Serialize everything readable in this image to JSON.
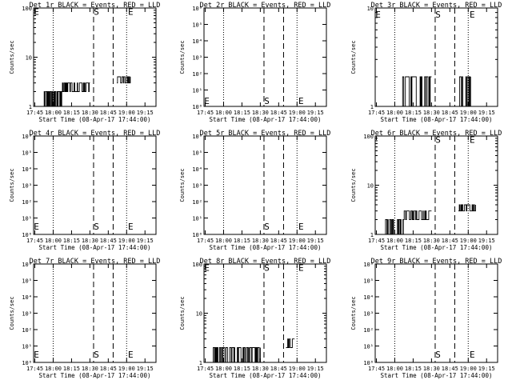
{
  "chart_data": [
    {
      "id": "1r",
      "title": "Det 1r BLACK = Events, RED = LLD",
      "type": "line",
      "ylabel": "Counts/sec",
      "xlabel": "Start Time (08-Apr-17 17:44:00)",
      "x_ticks": [
        "17:45",
        "18:00",
        "18:15",
        "18:30",
        "18:45",
        "19:00",
        "19:15"
      ],
      "xlim": [
        "17:44",
        "19:24"
      ],
      "yscale": "log",
      "ylim": [
        1,
        100
      ],
      "y_ticks": [
        {
          "label": "1",
          "v": 1
        },
        {
          "label": "10",
          "v": 10
        },
        {
          "label": "100",
          "v": 100
        }
      ],
      "dotted_lines": [
        "18:00",
        "19:00"
      ],
      "dashed_lines": [
        "18:33",
        "18:49"
      ],
      "markers": [
        {
          "text": "S",
          "at": "18:34",
          "v": 85
        },
        {
          "text": "E",
          "at": "19:02",
          "v": 85
        },
        {
          "text": "E",
          "at": "17:45",
          "v": 85
        }
      ],
      "series": [
        {
          "color": "#000000",
          "segments": [
            {
              "x": [
                "17:51",
                "18:07"
              ],
              "levels": [
                1,
                2
              ]
            },
            {
              "x": [
                "18:07",
                "18:30"
              ],
              "levels": [
                2,
                3
              ]
            },
            {
              "x": [
                "18:52",
                "19:03"
              ],
              "levels": [
                3,
                4
              ]
            }
          ]
        }
      ]
    },
    {
      "id": "2r",
      "title": "Det 2r BLACK = Events, RED = LLD",
      "type": "line",
      "ylabel": "Counts/sec",
      "xlabel": "Start Time (08-Apr-17 17:44:00)",
      "x_ticks": [
        "17:45",
        "18:00",
        "18:15",
        "18:30",
        "18:45",
        "19:00",
        "19:15"
      ],
      "xlim": [
        "17:44",
        "19:24"
      ],
      "yscale": "log",
      "ylim": [
        1,
        1000000
      ],
      "y_ticks": [
        {
          "label": "10⁰",
          "v": 1
        },
        {
          "label": "10¹",
          "v": 10
        },
        {
          "label": "10²",
          "v": 100
        },
        {
          "label": "10³",
          "v": 1000
        },
        {
          "label": "10⁴",
          "v": 10000
        },
        {
          "label": "10⁵",
          "v": 100000
        },
        {
          "label": "10⁶",
          "v": 1000000
        }
      ],
      "dotted_lines": [
        "18:00",
        "19:00"
      ],
      "dashed_lines": [
        "18:33",
        "18:49"
      ],
      "markers": [
        {
          "text": "S",
          "at": "18:34",
          "v": 2.2
        },
        {
          "text": "E",
          "at": "19:02",
          "v": 2.2
        },
        {
          "text": "E",
          "at": "17:45",
          "v": 2.2
        }
      ],
      "series": []
    },
    {
      "id": "3r",
      "title": "Det 3r BLACK = Events, RED = LLD",
      "type": "line",
      "ylabel": "Counts/sec",
      "xlabel": "Start Time (08-Apr-17 17:44:00)",
      "x_ticks": [
        "17:45",
        "18:00",
        "18:15",
        "18:30",
        "18:45",
        "19:00",
        "19:15"
      ],
      "xlim": [
        "17:44",
        "19:24"
      ],
      "yscale": "log",
      "ylim": [
        1,
        10
      ],
      "y_ticks": [
        {
          "label": "1",
          "v": 1
        },
        {
          "label": "10",
          "v": 10
        }
      ],
      "dotted_lines": [
        "18:00",
        "19:00"
      ],
      "dashed_lines": [
        "18:33",
        "18:49"
      ],
      "markers": [
        {
          "text": "S",
          "at": "18:34",
          "v": 8.6
        },
        {
          "text": "E",
          "at": "19:02",
          "v": 8.6
        },
        {
          "text": "E",
          "at": "17:45",
          "v": 8.6
        }
      ],
      "series": [
        {
          "color": "#000000",
          "segments": [
            {
              "x": [
                "18:06",
                "18:30"
              ],
              "levels": [
                1,
                2
              ]
            },
            {
              "x": [
                "18:52",
                "19:02"
              ],
              "levels": [
                1,
                2
              ]
            }
          ]
        }
      ]
    },
    {
      "id": "4r",
      "title": "Det 4r BLACK = Events, RED = LLD",
      "type": "line",
      "ylabel": "Counts/sec",
      "xlabel": "Start Time (08-Apr-17 17:44:00)",
      "x_ticks": [
        "17:45",
        "18:00",
        "18:15",
        "18:30",
        "18:45",
        "19:00",
        "19:15"
      ],
      "xlim": [
        "17:44",
        "19:24"
      ],
      "yscale": "log",
      "ylim": [
        1,
        1000000
      ],
      "y_ticks": [
        {
          "label": "10⁰",
          "v": 1
        },
        {
          "label": "10¹",
          "v": 10
        },
        {
          "label": "10²",
          "v": 100
        },
        {
          "label": "10³",
          "v": 1000
        },
        {
          "label": "10⁴",
          "v": 10000
        },
        {
          "label": "10⁵",
          "v": 100000
        },
        {
          "label": "10⁶",
          "v": 1000000
        }
      ],
      "dotted_lines": [
        "18:00",
        "19:00"
      ],
      "dashed_lines": [
        "18:33",
        "18:49"
      ],
      "markers": [
        {
          "text": "S",
          "at": "18:34",
          "v": 3
        },
        {
          "text": "E",
          "at": "19:02",
          "v": 3
        },
        {
          "text": "E",
          "at": "17:45",
          "v": 3
        }
      ],
      "series": []
    },
    {
      "id": "5r",
      "title": "Det 5r BLACK = Events, RED = LLD",
      "type": "line",
      "ylabel": "Counts/sec",
      "xlabel": "Start Time (08-Apr-17 17:44:00)",
      "x_ticks": [
        "17:45",
        "18:00",
        "18:15",
        "18:30",
        "18:45",
        "19:00",
        "19:15"
      ],
      "xlim": [
        "17:44",
        "19:24"
      ],
      "yscale": "log",
      "ylim": [
        1,
        1000000
      ],
      "y_ticks": [
        {
          "label": "10⁰",
          "v": 1
        },
        {
          "label": "10¹",
          "v": 10
        },
        {
          "label": "10²",
          "v": 100
        },
        {
          "label": "10³",
          "v": 1000
        },
        {
          "label": "10⁴",
          "v": 10000
        },
        {
          "label": "10⁵",
          "v": 100000
        },
        {
          "label": "10⁶",
          "v": 1000000
        }
      ],
      "dotted_lines": [
        "18:00",
        "19:00"
      ],
      "dashed_lines": [
        "18:33",
        "18:49"
      ],
      "markers": [
        {
          "text": "S",
          "at": "18:34",
          "v": 3
        },
        {
          "text": "E",
          "at": "19:02",
          "v": 3
        }
      ],
      "series": []
    },
    {
      "id": "6r",
      "title": "Det 6r BLACK = Events, RED = LLD",
      "type": "line",
      "ylabel": "Counts/sec",
      "xlabel": "Start Time (08-Apr-17 17:44:00)",
      "x_ticks": [
        "17:45",
        "18:00",
        "18:15",
        "18:30",
        "18:45",
        "19:00",
        "19:15"
      ],
      "xlim": [
        "17:44",
        "19:24"
      ],
      "yscale": "log",
      "ylim": [
        1,
        100
      ],
      "y_ticks": [
        {
          "label": "1",
          "v": 1
        },
        {
          "label": "10",
          "v": 10
        },
        {
          "label": "100",
          "v": 100
        }
      ],
      "dotted_lines": [
        "18:00",
        "19:00"
      ],
      "dashed_lines": [
        "18:33",
        "18:49"
      ],
      "markers": [
        {
          "text": "S",
          "at": "18:34",
          "v": 85
        },
        {
          "text": "E",
          "at": "19:02",
          "v": 85
        }
      ],
      "series": [
        {
          "color": "#000000",
          "segments": [
            {
              "x": [
                "17:51",
                "18:07"
              ],
              "levels": [
                1,
                2
              ]
            },
            {
              "x": [
                "18:07",
                "18:30"
              ],
              "levels": [
                2,
                3
              ]
            },
            {
              "x": [
                "18:52",
                "19:06"
              ],
              "levels": [
                3,
                4
              ]
            }
          ]
        }
      ]
    },
    {
      "id": "7r",
      "title": "Det 7r BLACK = Events, RED = LLD",
      "type": "line",
      "ylabel": "Counts/sec",
      "xlabel": "Start Time (08-Apr-17 17:44:00)",
      "x_ticks": [
        "17:45",
        "18:00",
        "18:15",
        "18:30",
        "18:45",
        "19:00",
        "19:15"
      ],
      "xlim": [
        "17:44",
        "19:24"
      ],
      "yscale": "log",
      "ylim": [
        1,
        1000000
      ],
      "y_ticks": [
        {
          "label": "10⁰",
          "v": 1
        },
        {
          "label": "10¹",
          "v": 10
        },
        {
          "label": "10²",
          "v": 100
        },
        {
          "label": "10³",
          "v": 1000
        },
        {
          "label": "10⁴",
          "v": 10000
        },
        {
          "label": "10⁵",
          "v": 100000
        },
        {
          "label": "10⁶",
          "v": 1000000
        }
      ],
      "dotted_lines": [
        "18:00",
        "19:00"
      ],
      "dashed_lines": [
        "18:33",
        "18:49"
      ],
      "markers": [
        {
          "text": "S",
          "at": "18:34",
          "v": 3
        },
        {
          "text": "E",
          "at": "19:02",
          "v": 3
        },
        {
          "text": "E",
          "at": "17:45",
          "v": 3
        }
      ],
      "series": []
    },
    {
      "id": "8r",
      "title": "Det 8r BLACK = Events, RED = LLD",
      "type": "line",
      "ylabel": "Counts/sec",
      "xlabel": "Start Time (08-Apr-17 17:44:00)",
      "x_ticks": [
        "17:45",
        "18:00",
        "18:15",
        "18:30",
        "18:45",
        "19:00",
        "19:15"
      ],
      "xlim": [
        "17:44",
        "19:24"
      ],
      "yscale": "log",
      "ylim": [
        1,
        100
      ],
      "y_ticks": [
        {
          "label": "1",
          "v": 1
        },
        {
          "label": "10",
          "v": 10
        },
        {
          "label": "100",
          "v": 100
        }
      ],
      "dotted_lines": [
        "18:00",
        "19:00"
      ],
      "dashed_lines": [
        "18:33",
        "18:49"
      ],
      "markers": [
        {
          "text": "S",
          "at": "18:34",
          "v": 85
        },
        {
          "text": "E",
          "at": "19:02",
          "v": 85
        },
        {
          "text": "E",
          "at": "17:45",
          "v": 85
        }
      ],
      "series": [
        {
          "color": "#000000",
          "segments": [
            {
              "x": [
                "17:51",
                "18:30"
              ],
              "levels": [
                1,
                2
              ]
            },
            {
              "x": [
                "18:51",
                "18:58"
              ],
              "levels": [
                2,
                3
              ]
            }
          ]
        }
      ]
    },
    {
      "id": "9r",
      "title": "Det 9r BLACK = Events, RED = LLD",
      "type": "line",
      "ylabel": "Counts/sec",
      "xlabel": "Start Time (08-Apr-17 17:44:00)",
      "x_ticks": [
        "17:45",
        "18:00",
        "18:15",
        "18:30",
        "18:45",
        "19:00",
        "19:15"
      ],
      "xlim": [
        "17:44",
        "19:24"
      ],
      "yscale": "log",
      "ylim": [
        1,
        1000000
      ],
      "y_ticks": [
        {
          "label": "10⁰",
          "v": 1
        },
        {
          "label": "10¹",
          "v": 10
        },
        {
          "label": "10²",
          "v": 100
        },
        {
          "label": "10³",
          "v": 1000
        },
        {
          "label": "10⁴",
          "v": 10000
        },
        {
          "label": "10⁵",
          "v": 100000
        },
        {
          "label": "10⁶",
          "v": 1000000
        }
      ],
      "dotted_lines": [
        "18:00",
        "19:00"
      ],
      "dashed_lines": [
        "18:33",
        "18:49"
      ],
      "markers": [
        {
          "text": "S",
          "at": "18:34",
          "v": 3
        },
        {
          "text": "E",
          "at": "19:02",
          "v": 3
        }
      ],
      "series": []
    }
  ]
}
